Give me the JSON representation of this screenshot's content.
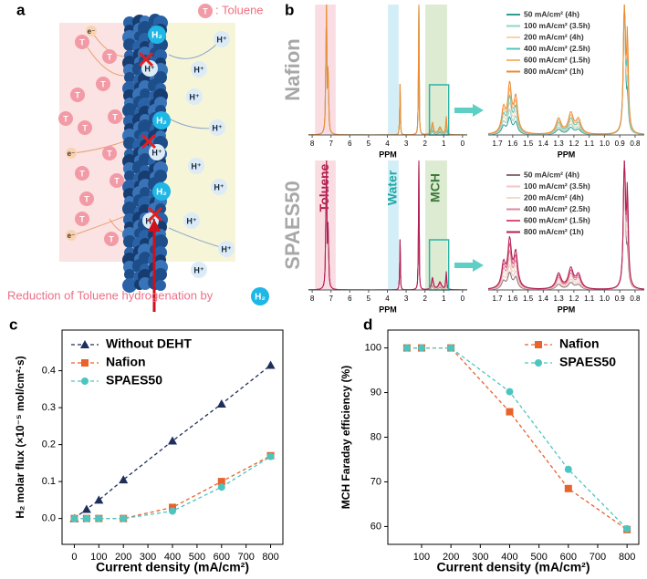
{
  "panel_labels": [
    "a",
    "b",
    "c",
    "d"
  ],
  "diagram": {
    "legend_symbol": "T",
    "legend_text": ": Toluene",
    "h2": "H₂",
    "proton": "H⁺",
    "electron": "e⁻",
    "caption": "Reduction of Toluene hydrogenation by",
    "caption_badge": "H₂"
  },
  "chart_data": [
    {
      "type": "spectrum",
      "title": "Nafion",
      "xlabel": "PPM",
      "xlim": [
        8.2,
        -0.25
      ],
      "xticks": [
        8,
        7,
        6,
        5,
        4,
        3,
        2,
        1,
        0
      ],
      "bands": [
        {
          "xrange": [
            7.85,
            6.75
          ],
          "color": "#fadde2"
        },
        {
          "xrange": [
            3.97,
            3.4
          ],
          "color": "#d3eef7"
        },
        {
          "xrange": [
            1.98,
            0.82
          ],
          "color": "#dcebd2"
        }
      ],
      "series": [
        {
          "name": "50 mA/cm² (4h)",
          "color": "#2f9e92"
        },
        {
          "name": "100 mA/cm² (3.5h)",
          "color": "#8fd3ca"
        },
        {
          "name": "200 mA/cm² (4h)",
          "color": "#f6d3b0"
        },
        {
          "name": "400 mA/cm² (2.5h)",
          "color": "#55c4bb"
        },
        {
          "name": "600 mA/cm² (1.5h)",
          "color": "#f5b877"
        },
        {
          "name": "800 mA/cm² (1h)",
          "color": "#ef8a2e"
        }
      ]
    },
    {
      "type": "spectrum-zoom",
      "xlabel": "PPM",
      "xlim": [
        1.76,
        0.74
      ],
      "xticks": [
        1.7,
        1.6,
        1.5,
        1.4,
        1.3,
        1.2,
        1.1,
        {
          "value": 1,
          "label": "1.0"
        },
        0.9,
        0.8
      ]
    },
    {
      "type": "spectrum",
      "title": "SPAES50",
      "xlabel": "PPM",
      "xlim": [
        8.2,
        -0.25
      ],
      "xticks": [
        8,
        7,
        6,
        5,
        4,
        3,
        2,
        1,
        0
      ],
      "bands": [
        {
          "xrange": [
            7.85,
            6.75
          ],
          "color": "#fadde2",
          "label": "Toluene",
          "label_color": "#b3204e"
        },
        {
          "xrange": [
            3.97,
            3.4
          ],
          "color": "#d3eef7",
          "label": "Water",
          "label_color": "#1fa9a6"
        },
        {
          "xrange": [
            1.98,
            0.82
          ],
          "color": "#dcebd2",
          "label": "MCH",
          "label_color": "#3d7a3a"
        }
      ],
      "series": [
        {
          "name": "50 mA/cm² (4h)",
          "color": "#8c6f6f"
        },
        {
          "name": "100 mA/cm² (3.5h)",
          "color": "#f3c6c6"
        },
        {
          "name": "200 mA/cm² (4h)",
          "color": "#f1dcc8"
        },
        {
          "name": "400 mA/cm² (2.5h)",
          "color": "#dc8aa0"
        },
        {
          "name": "600 mA/cm² (1.5h)",
          "color": "#d9527a"
        },
        {
          "name": "800 mA/cm² (1h)",
          "color": "#b01e55"
        }
      ]
    },
    {
      "type": "spectrum-zoom",
      "xlabel": "PPM",
      "xlim": [
        1.76,
        0.74
      ],
      "xticks": [
        1.7,
        1.6,
        1.5,
        1.4,
        1.3,
        1.2,
        1.1,
        {
          "value": 1,
          "label": "1.0"
        },
        0.9,
        0.8
      ]
    },
    {
      "type": "line",
      "xlabel": "Current density (mA/cm²)",
      "ylabel": "H₂ molar flux (×10⁻⁵ mol/cm²·s)",
      "x": [
        0,
        50,
        100,
        200,
        400,
        600,
        800
      ],
      "xlim": [
        -50,
        850
      ],
      "xticks": [
        0,
        100,
        200,
        300,
        400,
        500,
        600,
        700,
        800
      ],
      "ylim": [
        -0.07,
        0.51
      ],
      "yticks": [
        {
          "value": 0,
          "label": "0.0"
        },
        0.1,
        0.2,
        0.3,
        0.4
      ],
      "legend": "upper left",
      "series": [
        {
          "name": "Without DEHT",
          "color": "#1f2f5c",
          "marker": "triangle",
          "values": [
            0,
            0.025,
            0.05,
            0.105,
            0.21,
            0.31,
            0.415
          ]
        },
        {
          "name": "Nafion",
          "color": "#e8622c",
          "marker": "square",
          "values": [
            0,
            0,
            0,
            0,
            0.03,
            0.1,
            0.17
          ]
        },
        {
          "name": "SPAES50",
          "color": "#4cc5c0",
          "marker": "circle",
          "values": [
            0,
            0,
            0,
            0,
            0.02,
            0.085,
            0.168
          ]
        }
      ]
    },
    {
      "type": "line",
      "xlabel": "Current density (mA/cm²)",
      "ylabel": "MCH Faraday efficiency (%)",
      "x": [
        50,
        100,
        200,
        400,
        600,
        800
      ],
      "xlim": [
        -15,
        840
      ],
      "xticks": [
        100,
        200,
        300,
        400,
        500,
        600,
        700,
        800
      ],
      "ylim": [
        56,
        104
      ],
      "yticks": [
        60,
        70,
        80,
        90,
        100
      ],
      "legend": "upper right",
      "series": [
        {
          "name": "Nafion",
          "color": "#e8622c",
          "marker": "square",
          "values": [
            100,
            100,
            100,
            85.7,
            68.5,
            59.3
          ]
        },
        {
          "name": "SPAES50",
          "color": "#4cc5c0",
          "marker": "circle",
          "values": [
            100,
            100,
            100,
            90.2,
            72.8,
            59.5
          ]
        }
      ]
    }
  ]
}
